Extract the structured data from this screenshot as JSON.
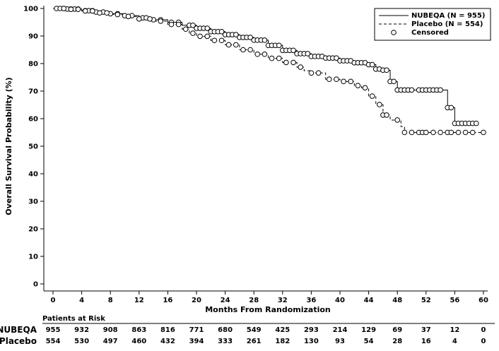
{
  "chart_data": {
    "type": "line",
    "subtype": "kaplan-meier",
    "xlabel": "Months From Randomization",
    "ylabel": "Overall Survival Probability (%)",
    "xlim": [
      0,
      60
    ],
    "ylim": [
      0,
      100
    ],
    "xticks": [
      0,
      4,
      8,
      12,
      16,
      20,
      24,
      28,
      32,
      36,
      40,
      44,
      48,
      52,
      56,
      60
    ],
    "yticks": [
      0,
      10,
      20,
      30,
      40,
      50,
      60,
      70,
      80,
      90,
      100
    ],
    "legend": {
      "position": "top-right",
      "entries": [
        {
          "label": "NUBEQA (N = 955)",
          "style": "solid"
        },
        {
          "label": "Placebo (N = 554)",
          "style": "dashed"
        },
        {
          "label": "Censored",
          "style": "circle"
        }
      ]
    },
    "series": [
      {
        "name": "NUBEQA (N = 955)",
        "style": "solid",
        "x": [
          0,
          2,
          4,
          6,
          8,
          10,
          12,
          14,
          16,
          18,
          20,
          22,
          24,
          26,
          28,
          30,
          32,
          34,
          36,
          38,
          40,
          42,
          44,
          45,
          46,
          47,
          48,
          50,
          52,
          54,
          55,
          56,
          58,
          59
        ],
        "y": [
          100,
          99.8,
          99.2,
          98.7,
          98.1,
          97.4,
          96.6,
          95.9,
          95.0,
          93.9,
          92.8,
          91.6,
          90.5,
          89.5,
          88.5,
          86.6,
          84.8,
          83.6,
          82.6,
          82.0,
          81.0,
          80.3,
          79.6,
          78.0,
          77.6,
          73.5,
          70.4,
          70.4,
          70.4,
          70.4,
          64.0,
          58.3,
          58.3,
          58.3
        ],
        "censored_x": [
          0.5,
          1,
          1.5,
          2,
          2.5,
          3,
          3.5,
          4.5,
          5,
          5.5,
          6,
          7,
          8,
          9,
          10,
          11,
          12.5,
          13,
          14,
          15,
          16.5,
          17.5,
          19,
          19.5,
          20,
          20.5,
          21,
          21.5,
          22,
          22.5,
          23,
          23.5,
          24,
          24.5,
          25,
          25.5,
          26,
          26.5,
          27,
          27.5,
          28,
          28.5,
          29,
          29.5,
          30,
          30.5,
          31,
          31.5,
          32,
          32.5,
          33,
          33.5,
          34,
          34.5,
          35,
          35.5,
          36,
          36.5,
          37,
          37.5,
          38,
          38.5,
          39,
          39.5,
          40,
          40.5,
          41,
          41.5,
          42,
          42.5,
          43,
          43.5,
          44,
          44.5,
          45,
          45.5,
          46,
          46.5,
          47,
          47.5,
          48,
          48.5,
          49,
          49.5,
          50,
          51,
          51.5,
          52,
          52.5,
          53,
          53.5,
          54,
          55,
          55.5,
          56,
          56.5,
          57,
          57.5,
          58,
          58.5,
          59
        ]
      },
      {
        "name": "Placebo (N = 554)",
        "style": "dashed",
        "x": [
          0,
          2,
          4,
          6,
          8,
          10,
          12,
          14,
          16,
          18,
          19,
          20,
          22,
          24,
          26,
          28,
          30,
          32,
          34,
          35,
          36,
          38,
          40,
          42,
          43,
          44,
          45,
          46,
          47,
          48,
          48.5,
          49,
          52,
          56,
          60
        ],
        "y": [
          100,
          99.7,
          99.1,
          98.4,
          97.8,
          97.1,
          96.2,
          95.4,
          94.2,
          92.5,
          91.0,
          89.9,
          88.4,
          86.8,
          85.0,
          83.4,
          81.9,
          80.4,
          78.7,
          77.4,
          76.6,
          74.3,
          73.5,
          72.0,
          71.2,
          68.2,
          65.1,
          61.3,
          59.5,
          59.5,
          57.1,
          55.0,
          55.0,
          55.0,
          55.0
        ],
        "censored_x": [
          1.5,
          2.5,
          3.5,
          4.5,
          5.5,
          6.5,
          7.5,
          9,
          10.5,
          12,
          13.5,
          15,
          16.5,
          17.5,
          18.5,
          19.5,
          20.5,
          21.5,
          22.5,
          23.5,
          24.5,
          25.5,
          26.5,
          27.5,
          28.5,
          29.5,
          30.5,
          31.5,
          32.5,
          33.5,
          34.5,
          36,
          37,
          38.5,
          39.5,
          40.5,
          41.5,
          42.5,
          43.5,
          44.5,
          45.5,
          46,
          46.5,
          48,
          49,
          50,
          51,
          51.5,
          52,
          53,
          54,
          55,
          55.5,
          56.5,
          57.5,
          58.5,
          60
        ]
      }
    ],
    "risk_table": {
      "title": "Patients at Risk",
      "times": [
        0,
        4,
        8,
        12,
        16,
        20,
        24,
        28,
        32,
        36,
        40,
        44,
        48,
        52,
        56,
        60
      ],
      "rows": [
        {
          "name": "NUBEQA",
          "values": [
            "955",
            "932",
            "908",
            "863",
            "816",
            "771",
            "680",
            "549",
            "425",
            "293",
            "214",
            "129",
            "69",
            "37",
            "12",
            "0"
          ]
        },
        {
          "name": "Placebo",
          "values": [
            "554",
            "530",
            "497",
            "460",
            "432",
            "394",
            "333",
            "261",
            "182",
            "130",
            "93",
            "54",
            "28",
            "16",
            "4",
            "0"
          ]
        }
      ]
    }
  }
}
